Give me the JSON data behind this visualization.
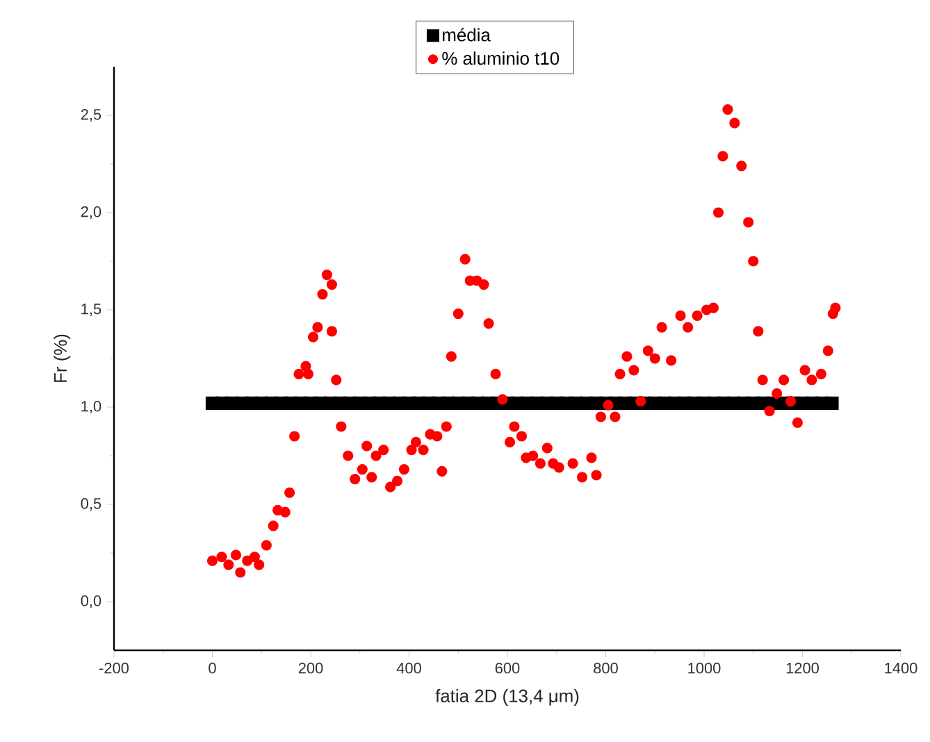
{
  "chart_data": {
    "type": "scatter",
    "xlabel": "fatia 2D (13,4 μm)",
    "ylabel": "Fr (%)",
    "xlim": [
      -200,
      1400
    ],
    "xticks": [
      -200,
      0,
      200,
      400,
      600,
      800,
      1000,
      1200,
      1400
    ],
    "ylim": [
      -0.25,
      2.75
    ],
    "yticks": [
      {
        "value": 0,
        "label": "0,0"
      },
      {
        "value": 0.5,
        "label": "0,5"
      },
      {
        "value": 1,
        "label": "1,0"
      },
      {
        "value": 1.5,
        "label": "1,5"
      },
      {
        "value": 2,
        "label": "2,0"
      },
      {
        "value": 2.5,
        "label": "2,5"
      }
    ],
    "legend": "top",
    "series": [
      {
        "name": "média",
        "color": "#000000",
        "marker": "square",
        "x": [
          0,
          20,
          40,
          60,
          80,
          100,
          120,
          140,
          160,
          180,
          200,
          220,
          240,
          260,
          280,
          300,
          320,
          340,
          360,
          380,
          400,
          420,
          440,
          460,
          480,
          500,
          520,
          540,
          560,
          580,
          600,
          620,
          640,
          660,
          680,
          700,
          720,
          740,
          760,
          780,
          800,
          820,
          840,
          860,
          880,
          900,
          920,
          940,
          960,
          980,
          1000,
          1020,
          1040,
          1060,
          1080,
          1100,
          1120,
          1140,
          1160,
          1180,
          1200,
          1220,
          1240,
          1260
        ],
        "values": [
          1.02,
          1.02,
          1.02,
          1.02,
          1.02,
          1.02,
          1.02,
          1.02,
          1.02,
          1.02,
          1.02,
          1.02,
          1.02,
          1.02,
          1.02,
          1.02,
          1.02,
          1.02,
          1.02,
          1.02,
          1.02,
          1.02,
          1.02,
          1.02,
          1.02,
          1.02,
          1.02,
          1.02,
          1.02,
          1.02,
          1.02,
          1.02,
          1.02,
          1.02,
          1.02,
          1.02,
          1.02,
          1.02,
          1.02,
          1.02,
          1.02,
          1.02,
          1.02,
          1.02,
          1.02,
          1.02,
          1.02,
          1.02,
          1.02,
          1.02,
          1.02,
          1.02,
          1.02,
          1.02,
          1.02,
          1.02,
          1.02,
          1.02,
          1.02,
          1.02,
          1.02,
          1.02,
          1.02,
          1.02
        ]
      },
      {
        "name": "% aluminio t10",
        "color": "#ff0000",
        "marker": "circle",
        "x": [
          0,
          19,
          33,
          48,
          57,
          71,
          86,
          95,
          110,
          124,
          133,
          148,
          157,
          167,
          176,
          190,
          195,
          205,
          214,
          224,
          233,
          243,
          243,
          252,
          262,
          276,
          290,
          305,
          314,
          324,
          333,
          348,
          362,
          376,
          390,
          405,
          414,
          429,
          443,
          457,
          467,
          476,
          486,
          500,
          514,
          524,
          538,
          552,
          562,
          576,
          590,
          605,
          614,
          629,
          638,
          652,
          667,
          681,
          693,
          705,
          733,
          752,
          771,
          781,
          790,
          805,
          819,
          829,
          843,
          857,
          871,
          886,
          900,
          914,
          933,
          952,
          967,
          986,
          1005,
          1019,
          1029,
          1038,
          1048,
          1062,
          1076,
          1090,
          1100,
          1110,
          1119,
          1133,
          1148,
          1162,
          1176,
          1190,
          1205,
          1219,
          1238,
          1252,
          1262,
          1267
        ],
        "values": [
          0.21,
          0.23,
          0.19,
          0.24,
          0.15,
          0.21,
          0.23,
          0.19,
          0.29,
          0.39,
          0.47,
          0.46,
          0.56,
          0.85,
          1.17,
          1.21,
          1.17,
          1.36,
          1.41,
          1.58,
          1.68,
          1.63,
          1.39,
          1.14,
          0.9,
          0.75,
          0.63,
          0.68,
          0.8,
          0.64,
          0.75,
          0.78,
          0.59,
          0.62,
          0.68,
          0.78,
          0.82,
          0.78,
          0.86,
          0.85,
          0.67,
          0.9,
          1.26,
          1.48,
          1.76,
          1.65,
          1.65,
          1.63,
          1.43,
          1.17,
          1.04,
          0.82,
          0.9,
          0.85,
          0.74,
          0.75,
          0.71,
          0.79,
          0.71,
          0.69,
          0.71,
          0.64,
          0.74,
          0.65,
          0.95,
          1.01,
          0.95,
          1.17,
          1.26,
          1.19,
          1.03,
          1.29,
          1.25,
          1.41,
          1.24,
          1.47,
          1.41,
          1.47,
          1.5,
          1.51,
          2.0,
          2.29,
          2.53,
          2.46,
          2.24,
          1.95,
          1.75,
          1.39,
          1.14,
          0.98,
          1.07,
          1.14,
          1.03,
          0.92,
          1.19,
          1.14,
          1.17,
          1.29,
          1.48,
          1.51
        ]
      }
    ]
  }
}
